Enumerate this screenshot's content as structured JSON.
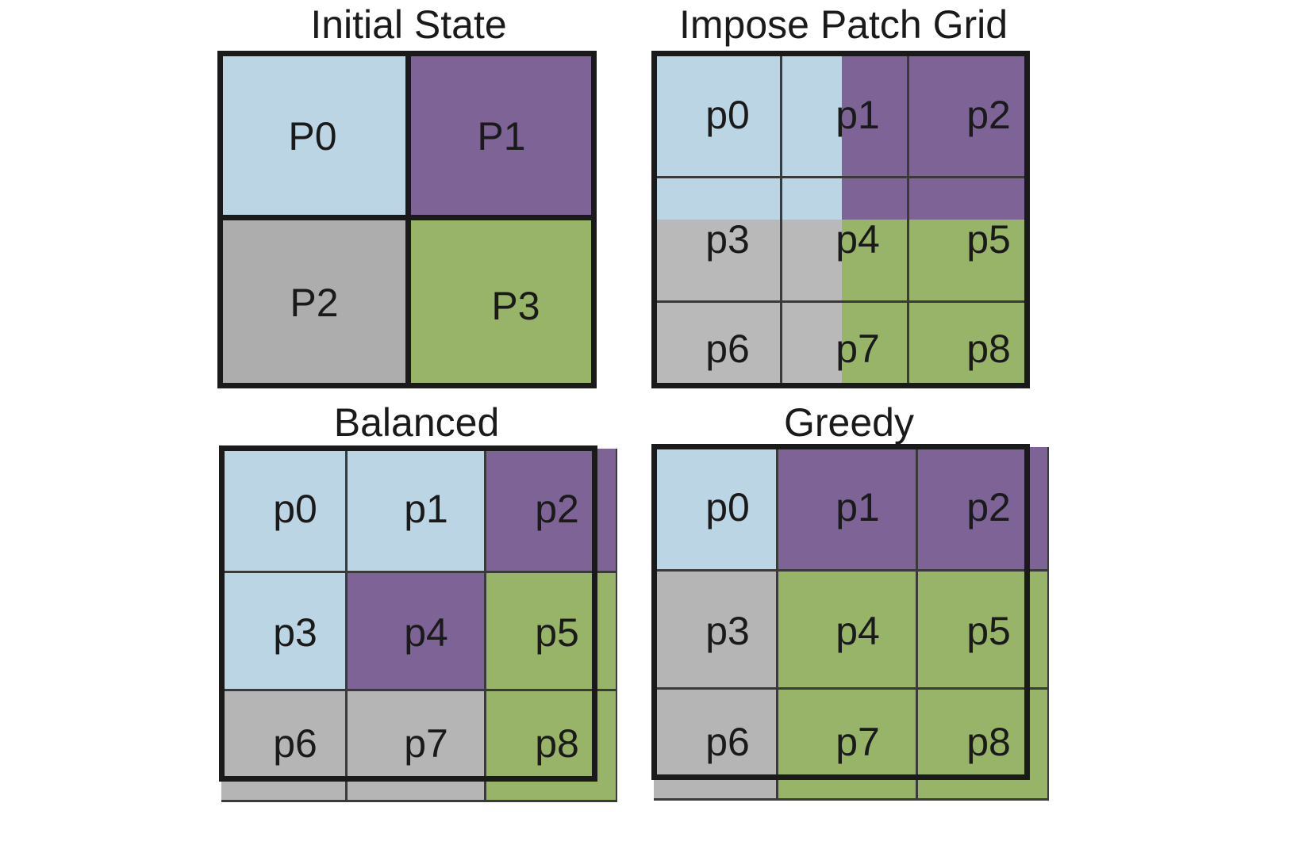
{
  "colors": {
    "blue": "#bcd5e5",
    "purple": "#7e6496",
    "gray": "#b5b5b5",
    "gray_dark": "#adadad",
    "green": "#97b468",
    "frame": "#1a1a1a"
  },
  "panels": {
    "initial": {
      "title": "Initial State",
      "labels": [
        "P0",
        "P1",
        "P2",
        "P3"
      ]
    },
    "impose": {
      "title": "Impose Patch Grid",
      "labels": [
        "p0",
        "p1",
        "p2",
        "p3",
        "p4",
        "p5",
        "p6",
        "p7",
        "p8"
      ]
    },
    "balanced": {
      "title": "Balanced",
      "labels": [
        "p0",
        "p1",
        "p2",
        "p3",
        "p4",
        "p5",
        "p6",
        "p7",
        "p8"
      ],
      "patch_owner": [
        "blue",
        "blue",
        "purple",
        "blue",
        "purple",
        "green",
        "gray",
        "gray",
        "green"
      ]
    },
    "greedy": {
      "title": "Greedy",
      "labels": [
        "p0",
        "p1",
        "p2",
        "p3",
        "p4",
        "p5",
        "p6",
        "p7",
        "p8"
      ],
      "patch_owner": [
        "blue",
        "purple",
        "purple",
        "gray",
        "green",
        "green",
        "gray",
        "green",
        "green"
      ]
    }
  }
}
